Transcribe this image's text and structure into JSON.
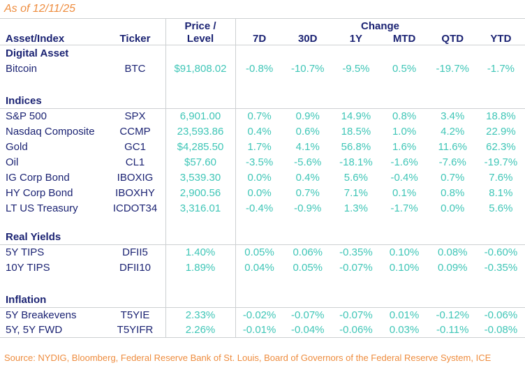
{
  "meta": {
    "as_of": "As of 12/11/25",
    "source": "Source: NYDIG, Bloomberg, Federal Reserve Bank of St. Louis, Board of Governors of the Federal Reserve System, ICE"
  },
  "colors": {
    "navy": "#1b2373",
    "teal": "#3fc6b7",
    "orange": "#ee8c3e",
    "grid_line": "#cdd0d2"
  },
  "table": {
    "headers": {
      "asset": "Asset/Index",
      "ticker": "Ticker",
      "price_line1": "Price /",
      "price_line2": "Level",
      "change_group": "Change",
      "periods": [
        "7D",
        "30D",
        "1Y",
        "MTD",
        "QTD",
        "YTD"
      ]
    },
    "sections": [
      {
        "label": "Digital Asset",
        "rows": [
          {
            "asset": "Bitcoin",
            "ticker": "BTC",
            "price": "$91,808.02",
            "changes": [
              "-0.8%",
              "-10.7%",
              "-9.5%",
              "0.5%",
              "-19.7%",
              "-1.7%"
            ]
          }
        ]
      },
      {
        "label": "Indices",
        "rows": [
          {
            "asset": "S&P 500",
            "ticker": "SPX",
            "price": "6,901.00",
            "changes": [
              "0.7%",
              "0.9%",
              "14.9%",
              "0.8%",
              "3.4%",
              "18.8%"
            ]
          },
          {
            "asset": "Nasdaq Composite",
            "ticker": "CCMP",
            "price": "23,593.86",
            "changes": [
              "0.4%",
              "0.6%",
              "18.5%",
              "1.0%",
              "4.2%",
              "22.9%"
            ]
          },
          {
            "asset": "Gold",
            "ticker": "GC1",
            "price": "$4,285.50",
            "changes": [
              "1.7%",
              "4.1%",
              "56.8%",
              "1.6%",
              "11.6%",
              "62.3%"
            ]
          },
          {
            "asset": "Oil",
            "ticker": "CL1",
            "price": "$57.60",
            "changes": [
              "-3.5%",
              "-5.6%",
              "-18.1%",
              "-1.6%",
              "-7.6%",
              "-19.7%"
            ]
          },
          {
            "asset": "IG Corp Bond",
            "ticker": "IBOXIG",
            "price": "3,539.30",
            "changes": [
              "0.0%",
              "0.4%",
              "5.6%",
              "-0.4%",
              "0.7%",
              "7.6%"
            ]
          },
          {
            "asset": "HY Corp Bond",
            "ticker": "IBOXHY",
            "price": "2,900.56",
            "changes": [
              "0.0%",
              "0.7%",
              "7.1%",
              "0.1%",
              "0.8%",
              "8.1%"
            ]
          },
          {
            "asset": "LT US Treasury",
            "ticker": "ICDOT34",
            "price": "3,316.01",
            "changes": [
              "-0.4%",
              "-0.9%",
              "1.3%",
              "-1.7%",
              "0.0%",
              "5.6%"
            ]
          }
        ]
      },
      {
        "label": "Real Yields",
        "rows": [
          {
            "asset": "5Y TIPS",
            "ticker": "DFII5",
            "price": "1.40%",
            "changes": [
              "0.05%",
              "0.06%",
              "-0.35%",
              "0.10%",
              "0.08%",
              "-0.60%"
            ]
          },
          {
            "asset": "10Y TIPS",
            "ticker": "DFII10",
            "price": "1.89%",
            "changes": [
              "0.04%",
              "0.05%",
              "-0.07%",
              "0.10%",
              "0.09%",
              "-0.35%"
            ]
          }
        ]
      },
      {
        "label": "Inflation",
        "rows": [
          {
            "asset": "5Y Breakevens",
            "ticker": "T5YIE",
            "price": "2.33%",
            "changes": [
              "-0.02%",
              "-0.07%",
              "-0.07%",
              "0.01%",
              "-0.12%",
              "-0.06%"
            ]
          },
          {
            "asset": "5Y, 5Y FWD",
            "ticker": "T5YIFR",
            "price": "2.26%",
            "changes": [
              "-0.01%",
              "-0.04%",
              "-0.06%",
              "0.03%",
              "-0.11%",
              "-0.08%"
            ]
          }
        ]
      }
    ]
  },
  "chart_data": {
    "type": "table",
    "title": "As of 12/11/25",
    "columns": [
      "Asset/Index",
      "Ticker",
      "Price / Level",
      "7D",
      "30D",
      "1Y",
      "MTD",
      "QTD",
      "YTD"
    ],
    "rows": [
      [
        "Bitcoin",
        "BTC",
        "$91,808.02",
        "-0.8%",
        "-10.7%",
        "-9.5%",
        "0.5%",
        "-19.7%",
        "-1.7%"
      ],
      [
        "S&P 500",
        "SPX",
        "6,901.00",
        "0.7%",
        "0.9%",
        "14.9%",
        "0.8%",
        "3.4%",
        "18.8%"
      ],
      [
        "Nasdaq Composite",
        "CCMP",
        "23,593.86",
        "0.4%",
        "0.6%",
        "18.5%",
        "1.0%",
        "4.2%",
        "22.9%"
      ],
      [
        "Gold",
        "GC1",
        "$4,285.50",
        "1.7%",
        "4.1%",
        "56.8%",
        "1.6%",
        "11.6%",
        "62.3%"
      ],
      [
        "Oil",
        "CL1",
        "$57.60",
        "-3.5%",
        "-5.6%",
        "-18.1%",
        "-1.6%",
        "-7.6%",
        "-19.7%"
      ],
      [
        "IG Corp Bond",
        "IBOXIG",
        "3,539.30",
        "0.0%",
        "0.4%",
        "5.6%",
        "-0.4%",
        "0.7%",
        "7.6%"
      ],
      [
        "HY Corp Bond",
        "IBOXHY",
        "2,900.56",
        "0.0%",
        "0.7%",
        "7.1%",
        "0.1%",
        "0.8%",
        "8.1%"
      ],
      [
        "LT US Treasury",
        "ICDOT34",
        "3,316.01",
        "-0.4%",
        "-0.9%",
        "1.3%",
        "-1.7%",
        "0.0%",
        "5.6%"
      ],
      [
        "5Y TIPS",
        "DFII5",
        "1.40%",
        "0.05%",
        "0.06%",
        "-0.35%",
        "0.10%",
        "0.08%",
        "-0.60%"
      ],
      [
        "10Y TIPS",
        "DFII10",
        "1.89%",
        "0.04%",
        "0.05%",
        "-0.07%",
        "0.10%",
        "0.09%",
        "-0.35%"
      ],
      [
        "5Y Breakevens",
        "T5YIE",
        "2.33%",
        "-0.02%",
        "-0.07%",
        "-0.07%",
        "0.01%",
        "-0.12%",
        "-0.06%"
      ],
      [
        "5Y, 5Y FWD",
        "T5YIFR",
        "2.26%",
        "-0.01%",
        "-0.04%",
        "-0.06%",
        "0.03%",
        "-0.11%",
        "-0.08%"
      ]
    ],
    "section_groups": [
      "Digital Asset",
      "Indices",
      "Real Yields",
      "Inflation"
    ]
  }
}
